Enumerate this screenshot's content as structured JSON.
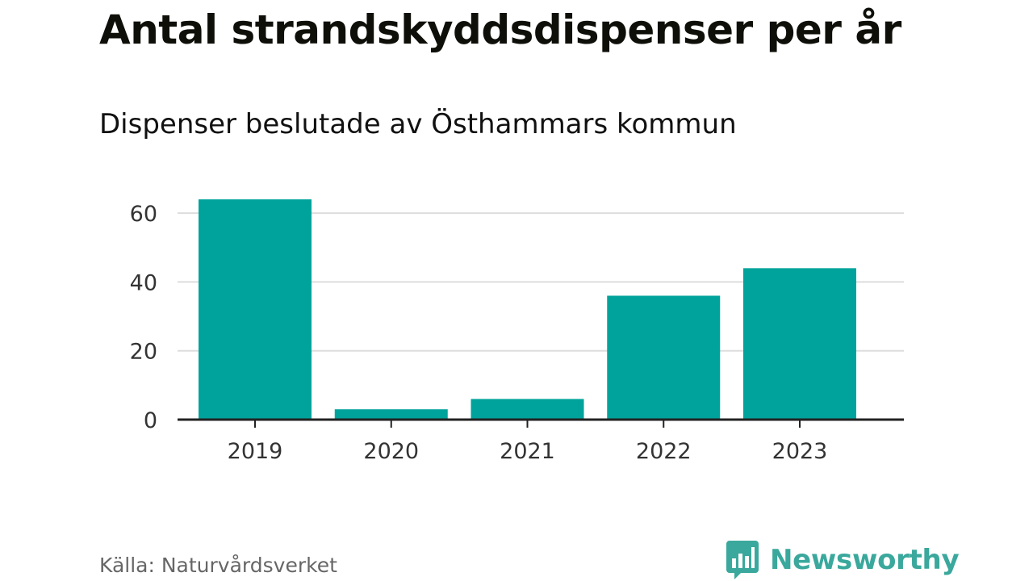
{
  "header": {
    "title": "Antal strandskyddsdispenser per år",
    "subtitle": "Dispenser beslutade av Östhammars kommun"
  },
  "footer": {
    "source": "Källa: Naturvårdsverket",
    "brand": "Newsworthy",
    "brand_icon": "bar-chart-speech-bubble-icon"
  },
  "colors": {
    "bar": "#00a39b",
    "grid": "#dddddd",
    "axis": "#222222",
    "brand": "#3aa89c"
  },
  "chart_data": {
    "type": "bar",
    "title": "Antal strandskyddsdispenser per år",
    "subtitle": "Dispenser beslutade av Östhammars kommun",
    "xlabel": "",
    "ylabel": "",
    "categories": [
      "2019",
      "2020",
      "2021",
      "2022",
      "2023"
    ],
    "values": [
      64,
      3,
      6,
      36,
      44
    ],
    "yticks": [
      0,
      20,
      40,
      60
    ],
    "ytick_labels": [
      "0",
      "20",
      "40",
      "60"
    ],
    "ylim": [
      0,
      68
    ],
    "grid": true,
    "legend": "none"
  }
}
